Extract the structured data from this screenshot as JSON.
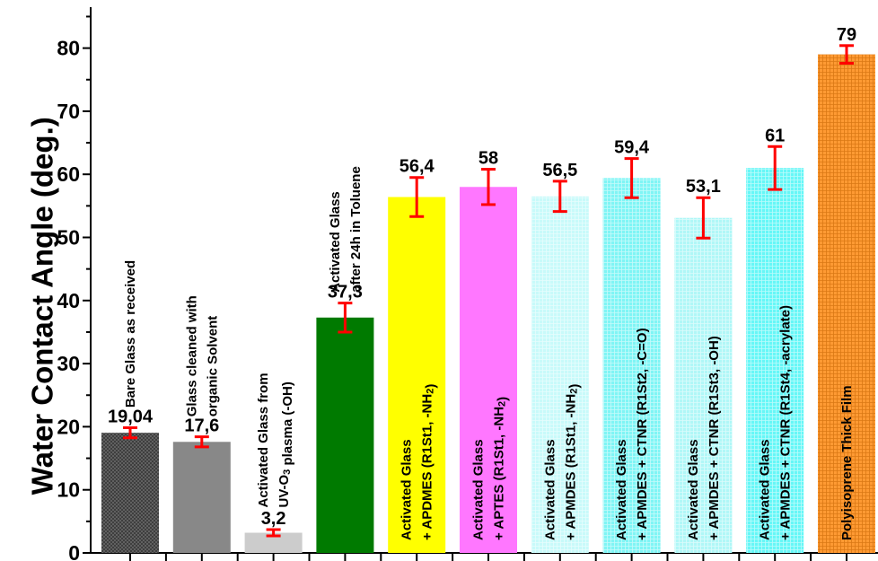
{
  "chart_data": {
    "type": "bar",
    "ylabel": "Water Contact Angle (deg.)",
    "ylim": [
      0,
      87
    ],
    "yticks": [
      0,
      10,
      20,
      30,
      40,
      50,
      60,
      70,
      80
    ],
    "grid": false,
    "legend": "none",
    "error_bar_color": "#ff0000",
    "bars": [
      {
        "value": 19.04,
        "value_label": "19,04",
        "error": 0.8,
        "fill": "#555555",
        "pattern": "hatch-dark",
        "label_lines": [
          [
            "Bare Glass as received"
          ]
        ]
      },
      {
        "value": 17.6,
        "value_label": "17,6",
        "error": 0.8,
        "fill": "#888888",
        "pattern": "none",
        "label_lines": [
          [
            "Glass cleaned with"
          ],
          [
            "organic Solvent"
          ]
        ]
      },
      {
        "value": 3.2,
        "value_label": "3,2",
        "error": 0.5,
        "fill": "#cccccc",
        "pattern": "none",
        "label_lines": [
          [
            "Activated Glass from"
          ],
          [
            "UV-O",
            {
              "sub": "3"
            },
            " plasma (-OH)"
          ]
        ]
      },
      {
        "value": 37.3,
        "value_label": "37,3",
        "error": 2.3,
        "fill": "#007a00",
        "pattern": "none",
        "label_lines": [
          [
            "Activated Glass"
          ],
          [
            "after 24h in Toluene"
          ]
        ]
      },
      {
        "value": 56.4,
        "value_label": "56,4",
        "error": 3.1,
        "fill": "#ffff00",
        "pattern": "none",
        "label_lines": [
          [
            "Activated Glass"
          ],
          [
            "+ APDMES (R1St1, -NH",
            {
              "sub": "2"
            },
            ")"
          ]
        ]
      },
      {
        "value": 58,
        "value_label": "58",
        "error": 2.8,
        "fill": "#ff77ff",
        "pattern": "none",
        "label_lines": [
          [
            "Activated Glass"
          ],
          [
            "+ APTES (R1St1, -NH",
            {
              "sub": "2"
            },
            ")"
          ]
        ]
      },
      {
        "value": 56.5,
        "value_label": "56,5",
        "error": 2.4,
        "fill": "#c8fafa",
        "pattern": "grid-light",
        "label_lines": [
          [
            "Activated Glass"
          ],
          [
            "+ APMDES (R1St1, -NH",
            {
              "sub": "2"
            },
            ")"
          ]
        ]
      },
      {
        "value": 59.4,
        "value_label": "59,4",
        "error": 3.1,
        "fill": "#7ff5f5",
        "pattern": "grid-light",
        "label_lines": [
          [
            "Activated Glass"
          ],
          [
            "+ APMDES + CTNR (R1St2, -C=O)"
          ]
        ]
      },
      {
        "value": 53.1,
        "value_label": "53,1",
        "error": 3.2,
        "fill": "#b0f7f7",
        "pattern": "grid-light",
        "label_lines": [
          [
            "Activated Glass"
          ],
          [
            "+ APMDES + CTNR (R1St3, -OH)"
          ]
        ]
      },
      {
        "value": 61,
        "value_label": "61",
        "error": 3.4,
        "fill": "#66f7f7",
        "pattern": "grid-light",
        "label_lines": [
          [
            "Activated Glass"
          ],
          [
            "+ APMDES + CTNR (R1St4, -acrylate)"
          ]
        ]
      },
      {
        "value": 79,
        "value_label": "79",
        "error": 1.4,
        "fill": "#ff9a33",
        "pattern": "grid-dark",
        "label_lines": [
          [
            "Polyisoprene Thick Film"
          ]
        ]
      }
    ]
  }
}
